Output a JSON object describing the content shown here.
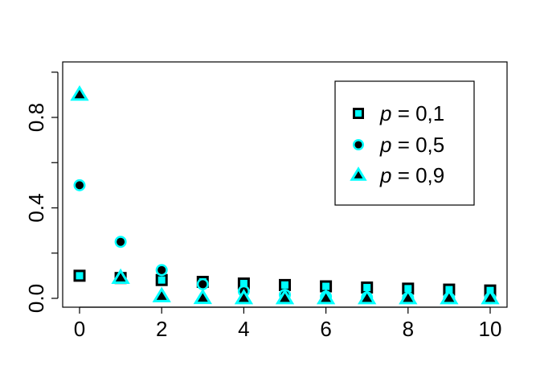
{
  "chart_data": {
    "type": "scatter",
    "x": [
      0,
      1,
      2,
      3,
      4,
      5,
      6,
      7,
      8,
      9,
      10
    ],
    "xlim": [
      0,
      10
    ],
    "ylim": [
      0,
      1
    ],
    "x_ticks": [
      0,
      2,
      4,
      6,
      8,
      10
    ],
    "x_tick_labels": [
      "0",
      "2",
      "4",
      "6",
      "8",
      "10"
    ],
    "y_ticks": [
      0,
      0.4,
      0.8
    ],
    "y_tick_labels": [
      "0.0",
      "0.4",
      "0.8"
    ],
    "title": "",
    "xlabel": "",
    "ylabel": "",
    "grid": false,
    "legend_position": "top-right",
    "colors": {
      "fill": "#00ffff",
      "edge": "#000000",
      "highlight": "#00ffff"
    },
    "series": [
      {
        "name": "p = 0,1",
        "legend_var": "p",
        "legend_value": " = 0,1",
        "marker": "square",
        "values": [
          0.1,
          0.09,
          0.081,
          0.0729,
          0.0656,
          0.059,
          0.0531,
          0.0478,
          0.043,
          0.0387,
          0.0349
        ]
      },
      {
        "name": "p = 0,5",
        "legend_var": "p",
        "legend_value": " = 0,5",
        "marker": "circle",
        "values": [
          0.5,
          0.25,
          0.125,
          0.0625,
          0.0313,
          0.0156,
          0.0078,
          0.0039,
          0.002,
          0.001,
          0.0005
        ]
      },
      {
        "name": "p = 0,9",
        "legend_var": "p",
        "legend_value": " = 0,9",
        "marker": "triangle",
        "values": [
          0.9,
          0.09,
          0.009,
          0.0009,
          0.0001,
          0.0,
          0.0,
          0.0,
          0.0,
          0.0,
          0.0
        ]
      }
    ]
  }
}
